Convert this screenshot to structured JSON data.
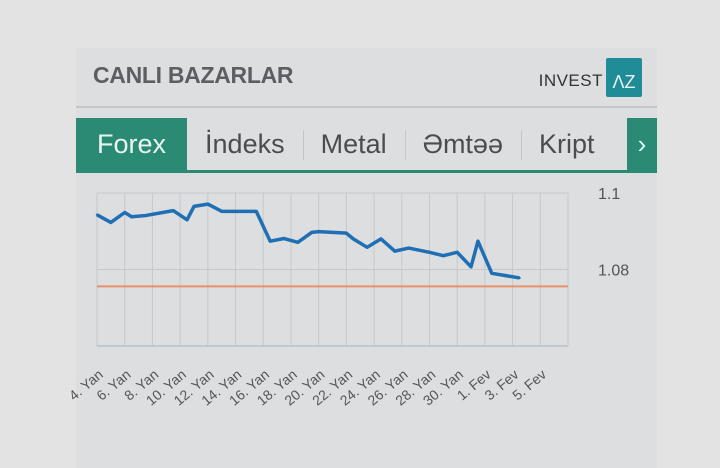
{
  "header": {
    "title": "CANLI BAZARLAR",
    "logo_text": "INVEST",
    "logo_box": "ΛZ"
  },
  "tabs": [
    {
      "label": "Forex",
      "active": true
    },
    {
      "label": "İndeks"
    },
    {
      "label": "Metal"
    },
    {
      "label": "Əmtəə"
    },
    {
      "label": "Kript"
    }
  ],
  "next_icon": "chevron-right-icon",
  "colors": {
    "accent": "#2a8a73",
    "line": "#1f6fb5",
    "reference": "#e8906a",
    "logo": "#1f8c98"
  },
  "chart_data": {
    "type": "line",
    "title": "",
    "xlabel": "",
    "ylabel": "",
    "ylim": [
      1.06,
      1.1
    ],
    "yticks": [
      "1.1",
      "1.08"
    ],
    "ytick_values": [
      1.1,
      1.08
    ],
    "xticks": [
      "4. Yan",
      "6. Yan",
      "8. Yan",
      "10. Yan",
      "12. Yan",
      "14. Yan",
      "16. Yan",
      "18. Yan",
      "20. Yan",
      "22. Yan",
      "24. Yan",
      "26. Yan",
      "28. Yan",
      "30. Yan",
      "1. Fev",
      "3. Fev",
      "5. Fev"
    ],
    "grid": true,
    "reference_line": 1.0756,
    "series": [
      {
        "x": [
          "01-04 00",
          "01-05 00",
          "01-06 00",
          "01-06 12",
          "01-07 12",
          "01-09 12",
          "01-10 12",
          "01-11 00",
          "01-12 00",
          "01-13 00",
          "01-15 12",
          "01-16 12",
          "01-17 12",
          "01-18 12",
          "01-19 12",
          "01-20 00",
          "01-22 00",
          "01-22 12",
          "01-23 12",
          "01-24 12",
          "01-25 12",
          "01-26 12",
          "01-28 00",
          "01-29 00",
          "01-30 00",
          "01-31 00",
          "01-31 12",
          "02-01 12",
          "02-03 12"
        ],
        "values": [
          1.0943,
          1.0923,
          1.0949,
          1.0938,
          1.0941,
          1.0954,
          1.093,
          1.0965,
          1.0971,
          1.0952,
          1.0952,
          1.0874,
          1.0881,
          1.0871,
          1.0897,
          1.0899,
          1.0895,
          1.088,
          1.0858,
          1.088,
          1.0848,
          1.0856,
          1.0845,
          1.0836,
          1.0845,
          1.0807,
          1.0874,
          1.079,
          1.0778
        ]
      }
    ]
  }
}
